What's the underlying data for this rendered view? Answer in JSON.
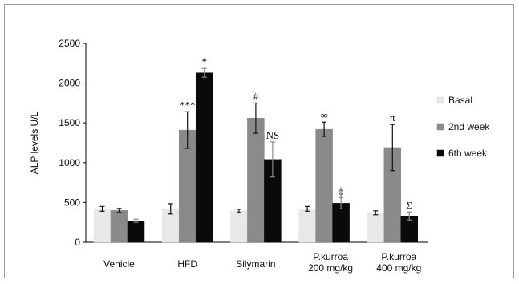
{
  "chart_data": {
    "type": "bar",
    "ylabel": "ALP levels U/L",
    "ylim": [
      0,
      2500
    ],
    "yticks": [
      0,
      500,
      1000,
      1500,
      2000,
      2500
    ],
    "grid": false,
    "legend_position": "right",
    "categories": [
      [
        "Vehicle"
      ],
      [
        "HFD"
      ],
      [
        "Silymarin"
      ],
      [
        "P.kurroa",
        "200 mg/kg"
      ],
      [
        "P.kurroa",
        "400 mg/kg"
      ]
    ],
    "series": [
      {
        "name": "Basal",
        "color": "#e8e8e8",
        "values": [
          420,
          420,
          395,
          420,
          370
        ],
        "errors": [
          30,
          65,
          20,
          30,
          25
        ],
        "annotations": [
          "",
          "",
          "",
          "",
          ""
        ]
      },
      {
        "name": "2nd week",
        "color": "#8a8a8a",
        "values": [
          400,
          1410,
          1560,
          1420,
          1190
        ],
        "errors": [
          25,
          230,
          190,
          90,
          290
        ],
        "annotations": [
          "",
          "***",
          "#",
          "∞",
          "π"
        ]
      },
      {
        "name": "6th week",
        "color": "#0a0a0a",
        "values": [
          270,
          2130,
          1040,
          490,
          330
        ],
        "errors": [
          20,
          55,
          220,
          70,
          50
        ],
        "annotations": [
          "",
          "*",
          "NS",
          "ϕ",
          "Σ"
        ]
      }
    ]
  }
}
